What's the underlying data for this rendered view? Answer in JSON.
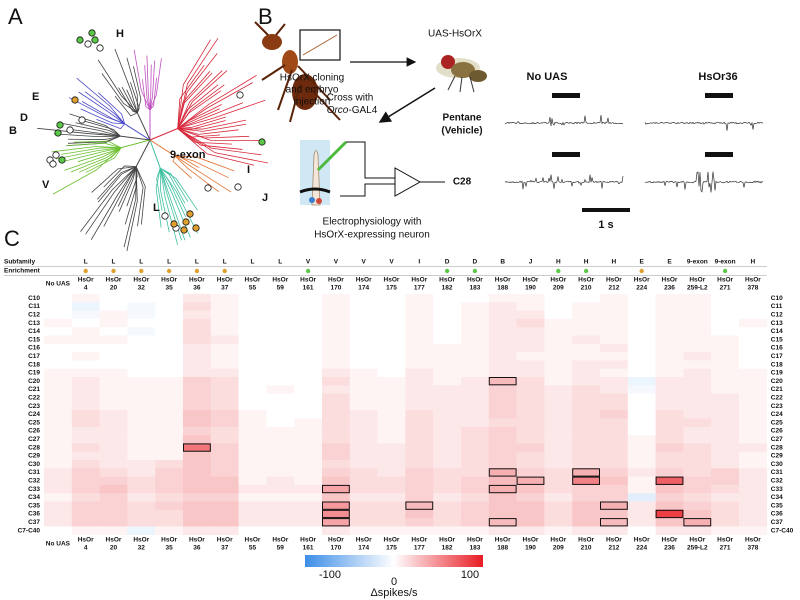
{
  "panel_labels": [
    "A",
    "B",
    "C"
  ],
  "tree": {
    "clade_labels": [
      "H",
      "E",
      "D",
      "B",
      "V",
      "L",
      "I",
      "J",
      "9-exon"
    ]
  },
  "schematic": {
    "construct": "UAS-HsOrX",
    "injection": [
      "HsOrX cloning",
      "and embryo",
      "injection"
    ],
    "cross": "Cross with",
    "cross_gene": "Orco",
    "cross_driver": "-GAL4",
    "recording": [
      "Electrophysiology with",
      "HsOrX-expressing neuron"
    ]
  },
  "traces": {
    "columns": [
      "No UAS",
      "HsOr36"
    ],
    "rows": [
      [
        "Pentane",
        "(Vehicle)"
      ],
      [
        "C28"
      ]
    ],
    "scale_label": "1 s"
  },
  "heatmap": {
    "row_headers": [
      "Subfamily",
      "Enrichment"
    ],
    "column_prefix": "HsOr",
    "columns": [
      "No UAS",
      "4",
      "20",
      "32",
      "35",
      "36",
      "37",
      "55",
      "59",
      "161",
      "170",
      "174",
      "175",
      "177",
      "182",
      "183",
      "188",
      "190",
      "209",
      "210",
      "212",
      "224",
      "236",
      "259-L2",
      "271",
      "378"
    ],
    "subfamily": [
      null,
      "L",
      "L",
      "L",
      "L",
      "L",
      "L",
      "L",
      "L",
      "V",
      "V",
      "V",
      "V",
      "I",
      "D",
      "D",
      "B",
      "J",
      "H",
      "H",
      "H",
      "E",
      "E",
      "9-exon",
      "9-exon",
      "H"
    ],
    "enrichment": [
      null,
      "#e0a030",
      "#e0a030",
      "#e0a030",
      "#e0a030",
      "#e0a030",
      "#e0a030",
      null,
      null,
      "#5cc84a",
      null,
      null,
      null,
      null,
      "#5cc84a",
      "#5cc84a",
      null,
      null,
      "#5cc84a",
      "#5cc84a",
      null,
      "#e0a030",
      null,
      null,
      "#5cc84a",
      null
    ],
    "rows": [
      "C10",
      "C11",
      "C12",
      "C13",
      "C14",
      "C15",
      "C16",
      "C17",
      "C18",
      "C19",
      "C20",
      "C21",
      "C22",
      "C23",
      "C24",
      "C25",
      "C26",
      "C27",
      "C28",
      "C29",
      "C30",
      "C31",
      "C32",
      "C33",
      "C34",
      "C35",
      "C36",
      "C37",
      "C7-C40"
    ],
    "values": [
      [
        0,
        5,
        0,
        0,
        0,
        10,
        5,
        0,
        0,
        0,
        5,
        0,
        0,
        5,
        0,
        0,
        5,
        5,
        0,
        0,
        5,
        0,
        5,
        5,
        0,
        0
      ],
      [
        0,
        -10,
        0,
        -5,
        0,
        15,
        5,
        0,
        0,
        0,
        5,
        0,
        0,
        5,
        0,
        5,
        10,
        5,
        0,
        5,
        5,
        0,
        5,
        5,
        0,
        0
      ],
      [
        0,
        -5,
        5,
        -5,
        0,
        10,
        5,
        0,
        0,
        0,
        5,
        0,
        0,
        5,
        0,
        5,
        10,
        10,
        0,
        5,
        5,
        0,
        5,
        5,
        0,
        0
      ],
      [
        5,
        0,
        5,
        0,
        0,
        15,
        5,
        0,
        0,
        0,
        5,
        0,
        0,
        5,
        0,
        5,
        10,
        15,
        5,
        5,
        5,
        0,
        5,
        5,
        0,
        5
      ],
      [
        0,
        5,
        0,
        -5,
        0,
        15,
        5,
        0,
        0,
        0,
        5,
        0,
        0,
        5,
        0,
        5,
        10,
        10,
        5,
        5,
        5,
        0,
        5,
        5,
        0,
        0
      ],
      [
        5,
        5,
        5,
        0,
        0,
        15,
        10,
        0,
        0,
        0,
        5,
        0,
        0,
        5,
        0,
        5,
        10,
        10,
        5,
        10,
        5,
        0,
        5,
        5,
        5,
        0
      ],
      [
        0,
        0,
        0,
        0,
        0,
        10,
        5,
        0,
        0,
        0,
        5,
        0,
        0,
        5,
        5,
        5,
        10,
        10,
        5,
        5,
        10,
        0,
        5,
        5,
        5,
        0
      ],
      [
        0,
        5,
        0,
        0,
        0,
        10,
        5,
        0,
        0,
        0,
        5,
        0,
        0,
        5,
        5,
        5,
        10,
        5,
        5,
        5,
        5,
        0,
        5,
        10,
        5,
        0
      ],
      [
        0,
        0,
        0,
        0,
        0,
        10,
        5,
        0,
        0,
        0,
        5,
        0,
        0,
        5,
        5,
        5,
        10,
        10,
        5,
        10,
        10,
        0,
        5,
        5,
        5,
        0
      ],
      [
        5,
        5,
        5,
        0,
        0,
        10,
        10,
        0,
        0,
        0,
        10,
        5,
        0,
        10,
        5,
        5,
        10,
        10,
        5,
        10,
        5,
        0,
        5,
        10,
        5,
        5
      ],
      [
        5,
        10,
        5,
        5,
        5,
        20,
        15,
        0,
        0,
        0,
        15,
        5,
        5,
        10,
        5,
        10,
        30,
        15,
        5,
        10,
        10,
        -10,
        10,
        10,
        5,
        5
      ],
      [
        5,
        10,
        5,
        5,
        5,
        20,
        15,
        0,
        5,
        0,
        10,
        5,
        5,
        10,
        10,
        10,
        20,
        15,
        10,
        15,
        10,
        -5,
        10,
        10,
        5,
        5
      ],
      [
        5,
        10,
        5,
        5,
        5,
        20,
        15,
        0,
        0,
        0,
        15,
        5,
        5,
        10,
        10,
        10,
        20,
        15,
        10,
        15,
        15,
        0,
        10,
        10,
        10,
        5
      ],
      [
        5,
        10,
        5,
        5,
        5,
        20,
        15,
        0,
        0,
        0,
        15,
        5,
        5,
        10,
        10,
        10,
        20,
        15,
        10,
        15,
        15,
        0,
        10,
        10,
        10,
        5
      ],
      [
        5,
        15,
        10,
        5,
        5,
        25,
        20,
        5,
        0,
        0,
        15,
        10,
        5,
        15,
        10,
        10,
        20,
        15,
        10,
        15,
        20,
        0,
        15,
        10,
        10,
        5
      ],
      [
        5,
        15,
        10,
        5,
        5,
        25,
        20,
        5,
        0,
        5,
        15,
        10,
        5,
        15,
        10,
        10,
        15,
        15,
        10,
        15,
        15,
        0,
        15,
        15,
        10,
        5
      ],
      [
        5,
        10,
        10,
        5,
        5,
        20,
        15,
        5,
        5,
        5,
        15,
        10,
        5,
        15,
        10,
        15,
        20,
        15,
        10,
        15,
        15,
        0,
        15,
        10,
        10,
        5
      ],
      [
        5,
        10,
        10,
        5,
        5,
        25,
        15,
        5,
        5,
        5,
        15,
        10,
        5,
        15,
        10,
        15,
        20,
        15,
        10,
        15,
        15,
        5,
        15,
        10,
        10,
        5
      ],
      [
        5,
        15,
        10,
        5,
        5,
        60,
        20,
        5,
        5,
        5,
        20,
        10,
        10,
        15,
        10,
        15,
        20,
        20,
        10,
        15,
        15,
        5,
        20,
        15,
        10,
        10
      ],
      [
        5,
        10,
        10,
        5,
        5,
        25,
        20,
        5,
        5,
        5,
        20,
        10,
        10,
        15,
        10,
        15,
        20,
        15,
        10,
        15,
        15,
        5,
        15,
        15,
        10,
        5
      ],
      [
        5,
        15,
        10,
        10,
        15,
        25,
        20,
        5,
        5,
        5,
        15,
        10,
        10,
        15,
        10,
        15,
        20,
        15,
        10,
        15,
        15,
        5,
        15,
        15,
        10,
        5
      ],
      [
        10,
        20,
        15,
        10,
        20,
        25,
        20,
        5,
        5,
        5,
        20,
        15,
        10,
        20,
        15,
        15,
        35,
        20,
        15,
        35,
        20,
        10,
        20,
        15,
        20,
        10
      ],
      [
        10,
        20,
        20,
        15,
        20,
        25,
        25,
        5,
        10,
        5,
        25,
        15,
        15,
        20,
        15,
        20,
        30,
        35,
        15,
        55,
        25,
        5,
        70,
        20,
        20,
        10
      ],
      [
        10,
        20,
        25,
        15,
        20,
        25,
        25,
        10,
        10,
        10,
        40,
        15,
        15,
        20,
        15,
        20,
        35,
        25,
        15,
        20,
        20,
        5,
        25,
        20,
        15,
        10
      ],
      [
        5,
        15,
        20,
        10,
        15,
        20,
        20,
        5,
        5,
        5,
        25,
        10,
        10,
        20,
        10,
        15,
        25,
        20,
        10,
        20,
        20,
        -15,
        20,
        15,
        10,
        10
      ],
      [
        10,
        20,
        20,
        15,
        20,
        25,
        25,
        10,
        10,
        10,
        45,
        15,
        15,
        30,
        15,
        20,
        25,
        25,
        15,
        25,
        35,
        10,
        25,
        20,
        15,
        10
      ],
      [
        10,
        20,
        20,
        15,
        15,
        25,
        25,
        10,
        10,
        10,
        50,
        15,
        15,
        25,
        15,
        20,
        25,
        25,
        15,
        25,
        25,
        10,
        85,
        25,
        15,
        10
      ],
      [
        10,
        20,
        20,
        15,
        15,
        25,
        25,
        10,
        10,
        10,
        40,
        15,
        15,
        20,
        15,
        20,
        30,
        25,
        15,
        25,
        30,
        10,
        25,
        35,
        15,
        10
      ],
      [
        0,
        5,
        5,
        -10,
        5,
        10,
        10,
        0,
        0,
        0,
        10,
        5,
        5,
        5,
        5,
        5,
        10,
        10,
        5,
        10,
        10,
        0,
        10,
        10,
        5,
        5
      ]
    ],
    "highlighted_cells": [
      [
        18,
        5
      ],
      [
        23,
        10
      ],
      [
        25,
        10
      ],
      [
        26,
        10
      ],
      [
        27,
        10
      ],
      [
        25,
        13
      ],
      [
        10,
        16
      ],
      [
        21,
        16
      ],
      [
        23,
        16
      ],
      [
        27,
        16
      ],
      [
        22,
        17
      ],
      [
        21,
        19
      ],
      [
        22,
        19
      ],
      [
        25,
        20
      ],
      [
        27,
        20
      ],
      [
        22,
        22
      ],
      [
        26,
        22
      ],
      [
        27,
        23
      ]
    ],
    "colorbar": {
      "min": -100,
      "mid": 0,
      "max": 100,
      "label": "Δspikes/s",
      "colors": [
        "#3d8ee8",
        "#ffffff",
        "#e81c24"
      ]
    }
  }
}
